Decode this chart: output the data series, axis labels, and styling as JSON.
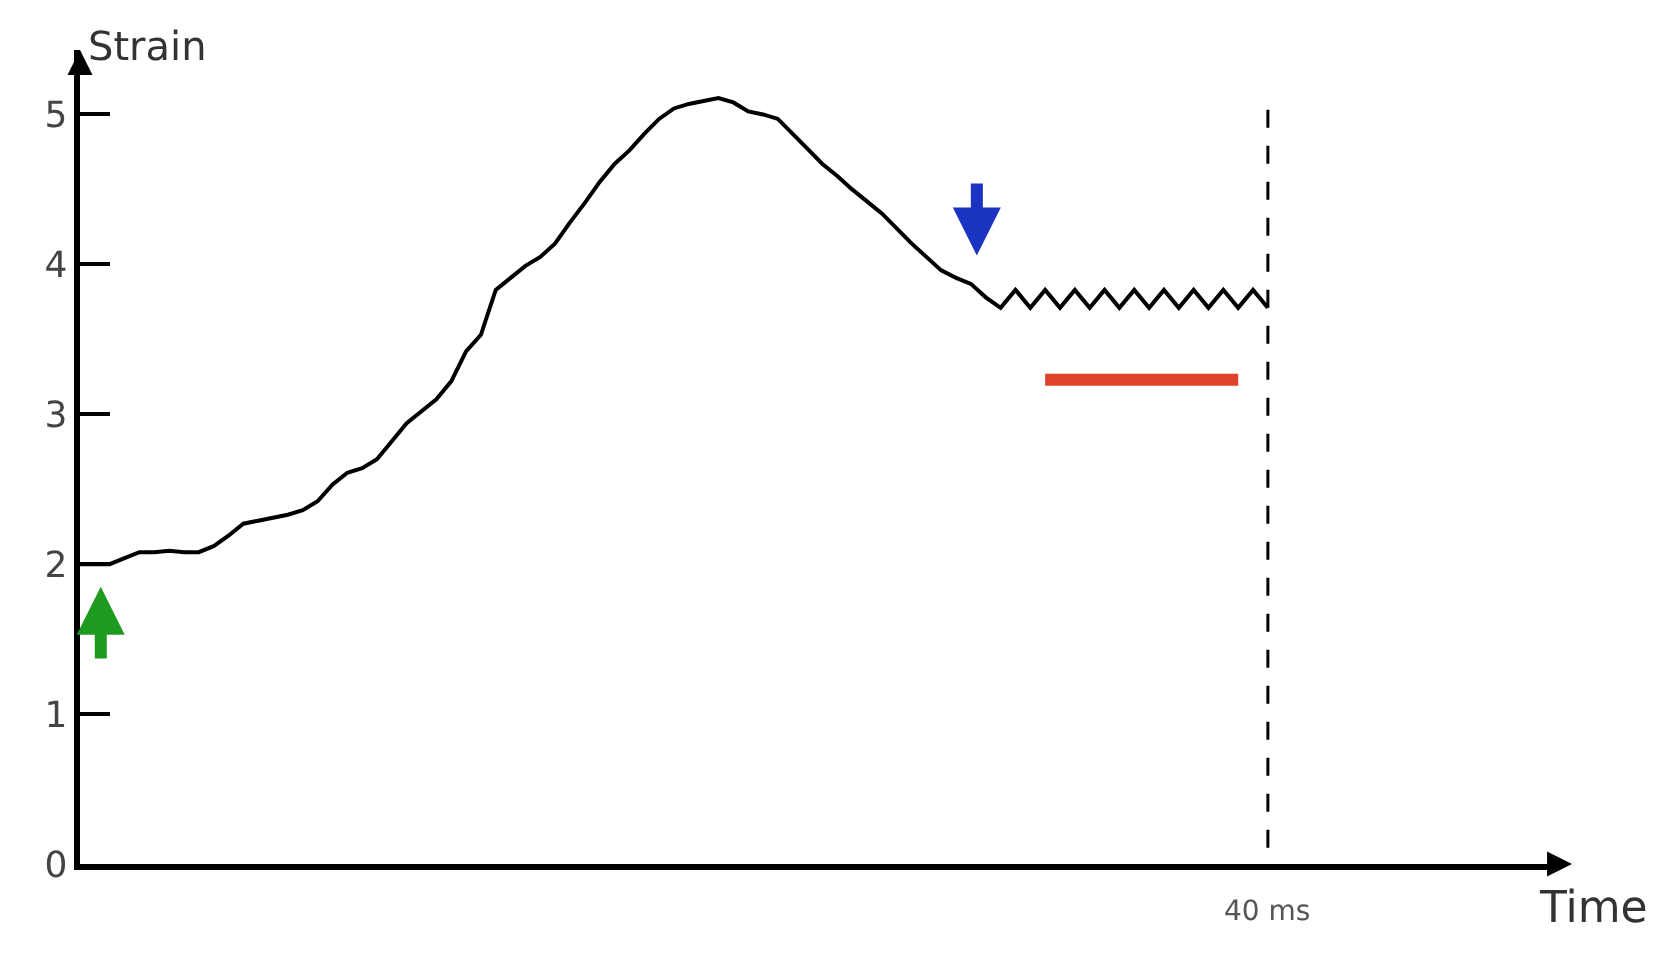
{
  "chart_data": {
    "type": "line",
    "xlabel": "Time",
    "ylabel": "Strain",
    "categories": [
      null,
      null,
      null,
      null,
      null,
      null,
      null,
      null,
      null,
      null,
      null,
      null,
      null,
      null,
      null,
      null,
      null,
      null,
      null,
      null,
      null,
      null,
      null,
      null,
      null,
      null,
      null,
      null,
      null,
      null,
      null,
      null,
      null,
      null,
      null,
      null,
      null,
      null,
      null,
      null,
      null,
      null,
      null,
      null,
      null,
      null,
      null,
      null,
      null,
      null,
      null,
      null,
      null,
      null,
      null,
      null,
      null,
      null,
      null,
      null,
      null,
      null,
      null,
      null,
      null,
      null,
      null,
      null,
      null,
      null,
      null,
      null,
      null,
      null,
      null,
      null,
      null,
      null,
      null,
      null,
      null,
      null,
      null,
      null,
      null,
      null,
      null,
      null,
      null,
      null,
      null,
      null,
      null,
      null,
      null,
      null,
      null,
      null,
      null,
      null
    ],
    "ylim": [
      0,
      5.43
    ],
    "yticks": [
      0,
      1,
      2,
      3,
      4,
      5
    ],
    "tick_labels": "y",
    "series": [
      {
        "color": "#000000",
        "values": [
          2.0,
          2.0,
          2.0,
          2.04,
          2.08,
          2.08,
          2.09,
          2.08,
          2.08,
          2.12,
          2.19,
          2.27,
          2.29,
          2.31,
          2.33,
          2.36,
          2.42,
          2.53,
          2.61,
          2.64,
          2.7,
          2.82,
          2.94,
          3.02,
          3.1,
          3.22,
          3.42,
          3.53,
          3.83,
          3.91,
          3.99,
          4.05,
          4.14,
          4.28,
          4.41,
          4.55,
          4.67,
          4.76,
          4.87,
          4.97,
          5.04,
          5.07,
          5.09,
          5.11,
          5.08,
          5.02,
          5.0,
          4.97,
          4.87,
          4.77,
          4.67,
          4.59,
          4.5,
          4.42,
          4.34,
          4.24,
          4.14,
          4.05,
          3.96,
          3.91,
          3.87,
          3.78,
          3.71,
          3.83,
          3.71,
          3.83,
          3.71,
          3.83,
          3.71,
          3.83,
          3.71,
          3.83,
          3.71,
          3.83,
          3.71,
          3.83,
          3.71,
          3.83,
          3.71,
          3.83,
          3.71,
          null,
          null,
          null,
          null,
          null,
          null,
          null,
          null,
          null,
          null,
          null,
          null,
          null,
          null,
          null,
          null,
          null,
          null,
          null
        ]
      },
      {
        "color": "#e0412a",
        "values": [
          null,
          null,
          null,
          null,
          null,
          null,
          null,
          null,
          null,
          null,
          null,
          null,
          null,
          null,
          null,
          null,
          null,
          null,
          null,
          null,
          null,
          null,
          null,
          null,
          null,
          null,
          null,
          null,
          null,
          null,
          null,
          null,
          null,
          null,
          null,
          null,
          null,
          null,
          null,
          null,
          null,
          null,
          null,
          null,
          null,
          null,
          null,
          null,
          null,
          null,
          null,
          null,
          null,
          null,
          null,
          null,
          null,
          null,
          null,
          null,
          null,
          null,
          null,
          null,
          null,
          3.23,
          3.23,
          3.23,
          3.23,
          3.23,
          3.23,
          3.23,
          3.23,
          3.23,
          3.23,
          3.23,
          3.23,
          3.23,
          3.23,
          null,
          null,
          null,
          null,
          null,
          null,
          null,
          null,
          null,
          null,
          null,
          null,
          null,
          null,
          null,
          null,
          null,
          null,
          null,
          null,
          null
        ]
      }
    ],
    "annotations": [
      "40 ms"
    ]
  }
}
